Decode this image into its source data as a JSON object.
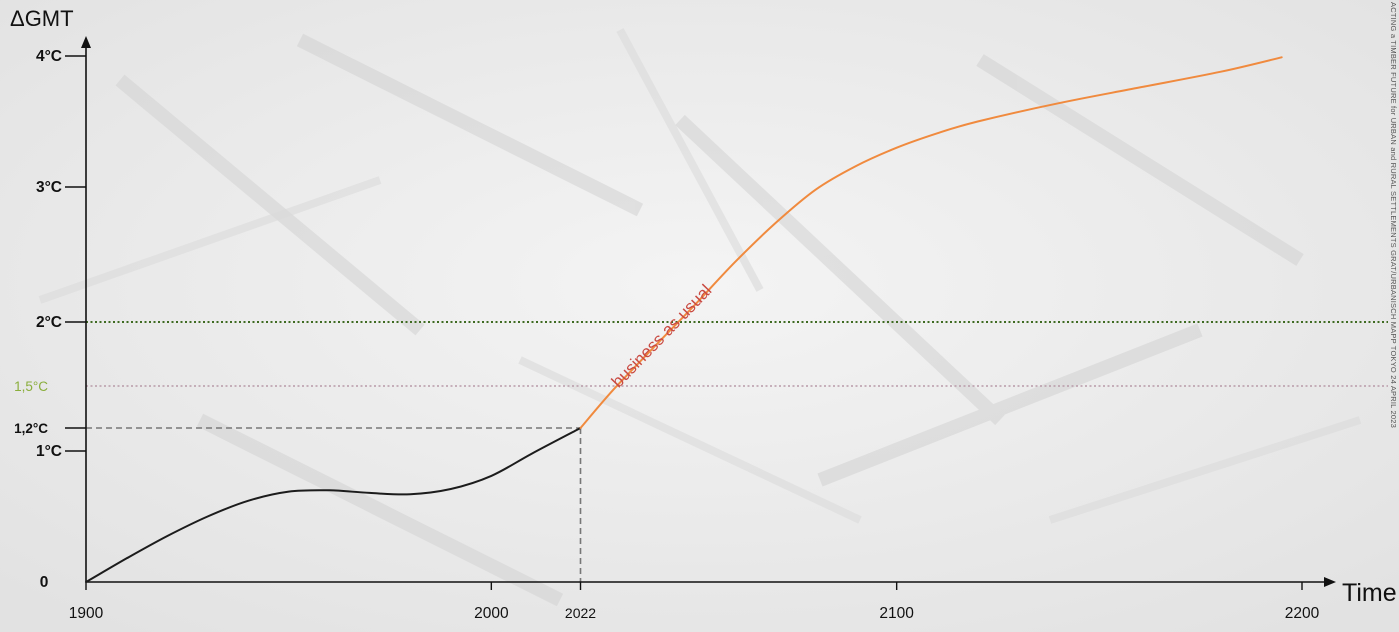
{
  "side_caption": "ACTING a TIMBER FUTURE for URBAN and RURAL SETTLEMENTS   GRAT/URBANISCH   MAPP   TOKYO   24 APRIL 2023",
  "chart_data": {
    "type": "line",
    "title": "",
    "xlabel": "Time",
    "ylabel": "ΔGMT",
    "xlim": [
      1900,
      2200
    ],
    "ylim": [
      0,
      4
    ],
    "x_ticks": [
      {
        "value": 1900,
        "label": "1900"
      },
      {
        "value": 2000,
        "label": "2000"
      },
      {
        "value": 2022,
        "label": "2022"
      },
      {
        "value": 2100,
        "label": "2100"
      },
      {
        "value": 2200,
        "label": "2200"
      }
    ],
    "y_ticks": [
      {
        "value": 0,
        "label": "0",
        "color": "#111111"
      },
      {
        "value": 1,
        "label": "1°C",
        "color": "#111111"
      },
      {
        "value": 1.2,
        "label": "1,2°C",
        "color": "#111111"
      },
      {
        "value": 1.5,
        "label": "1,5°C",
        "color": "#8aae3c"
      },
      {
        "value": 2,
        "label": "2°C",
        "color": "#111111"
      },
      {
        "value": 3,
        "label": "3°C",
        "color": "#111111"
      },
      {
        "value": 4,
        "label": "4°C",
        "color": "#111111"
      }
    ],
    "reference_lines": [
      {
        "value": 2,
        "color": "#3f6b22",
        "style": "dotted"
      },
      {
        "value": 1.5,
        "color": "#b89aa8",
        "style": "dotted"
      }
    ],
    "marker_2022": {
      "x": 2022,
      "y": 1.2,
      "color": "#777777",
      "style": "dashed"
    },
    "series": [
      {
        "color": "#1c1c1c",
        "x": [
          1900,
          1910,
          1920,
          1930,
          1940,
          1950,
          1960,
          1970,
          1980,
          1990,
          2000,
          2010,
          2022
        ],
        "y": [
          0,
          0.18,
          0.35,
          0.5,
          0.62,
          0.69,
          0.7,
          0.68,
          0.67,
          0.71,
          0.81,
          0.98,
          1.2
        ]
      },
      {
        "name": "business as usual",
        "color": "#f08a3e",
        "label_color": "#c94a42",
        "x": [
          2022,
          2030,
          2040,
          2050,
          2060,
          2070,
          2080,
          2090,
          2100,
          2110,
          2120,
          2140,
          2160,
          2180,
          2195
        ],
        "y": [
          1.2,
          1.47,
          1.8,
          2.12,
          2.44,
          2.73,
          2.98,
          3.16,
          3.3,
          3.41,
          3.5,
          3.64,
          3.76,
          3.88,
          3.99
        ]
      }
    ]
  }
}
